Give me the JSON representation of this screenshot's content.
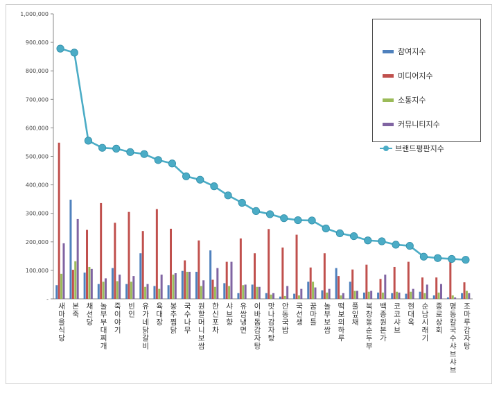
{
  "chart_data": {
    "type": "bar",
    "categories": [
      "새마을식당",
      "본죽",
      "채선당",
      "놀부부대찌개",
      "죽이야기",
      "빈인",
      "유가네닭갈비",
      "육대장",
      "봉추찜닭",
      "국수나무",
      "원할머니보쌈",
      "한신포차",
      "샤브향",
      "유쌈냉면",
      "이바돔감자탕",
      "맛나감자탕",
      "안동국밥",
      "국선생",
      "꿈마틀",
      "놀부보쌈",
      "떡보의하루",
      "풀잎채",
      "북창동순두부",
      "백종원본가",
      "코코샤브",
      "현대옥",
      "순남시래기",
      "종로상회",
      "명동칼국수샤브샤브",
      "조마루감자탕"
    ],
    "series": [
      {
        "name": "참여지수",
        "color": "#4f81bd",
        "values": [
          48000,
          348000,
          92000,
          52000,
          108000,
          52000,
          160000,
          45000,
          48000,
          98000,
          95000,
          170000,
          55000,
          20000,
          50000,
          20000,
          8000,
          18000,
          60000,
          30000,
          108000,
          60000,
          22000,
          22000,
          20000,
          18000,
          25000,
          12000,
          5000,
          20000
        ]
      },
      {
        "name": "미디어지수",
        "color": "#c0504d",
        "values": [
          548000,
          102000,
          242000,
          336000,
          267000,
          305000,
          238000,
          315000,
          246000,
          135000,
          205000,
          67000,
          130000,
          212000,
          160000,
          245000,
          180000,
          225000,
          110000,
          160000,
          80000,
          103000,
          120000,
          70000,
          112000,
          130000,
          75000,
          75000,
          130000,
          58000
        ]
      },
      {
        "name": "소통지수",
        "color": "#9bbb59",
        "values": [
          88000,
          132000,
          112000,
          60000,
          62000,
          60000,
          42000,
          35000,
          85000,
          95000,
          45000,
          42000,
          45000,
          48000,
          42000,
          15000,
          10000,
          12000,
          60000,
          22000,
          12000,
          28000,
          25000,
          22000,
          25000,
          25000,
          20000,
          22000,
          12000,
          28000
        ]
      },
      {
        "name": "커뮤니티지수",
        "color": "#8064a2",
        "values": [
          195000,
          280000,
          105000,
          72000,
          85000,
          80000,
          52000,
          85000,
          90000,
          95000,
          65000,
          108000,
          130000,
          50000,
          42000,
          20000,
          45000,
          35000,
          40000,
          35000,
          20000,
          28000,
          28000,
          85000,
          22000,
          35000,
          50000,
          52000,
          5000,
          20000
        ]
      }
    ],
    "line": {
      "name": "브랜드평판지수",
      "color": "#4bacc6",
      "values": [
        878000,
        864000,
        555000,
        530000,
        527000,
        515000,
        508000,
        487000,
        475000,
        430000,
        418000,
        395000,
        363000,
        337000,
        308000,
        297000,
        283000,
        276000,
        275000,
        247000,
        230000,
        220000,
        205000,
        202000,
        190000,
        186000,
        148000,
        143000,
        140000,
        137000
      ]
    },
    "ylim": [
      0,
      1000000
    ],
    "yticks": [
      "1,000,000",
      "900,000",
      "800,000",
      "700,000",
      "600,000",
      "500,000",
      "400,000",
      "300,000",
      "200,000",
      "100,000",
      "-"
    ],
    "ytick_values": [
      1000000,
      900000,
      800000,
      700000,
      600000,
      500000,
      400000,
      300000,
      200000,
      100000,
      0
    ],
    "grid": false,
    "legend": "top-right",
    "title": "",
    "xlabel": "",
    "ylabel": ""
  }
}
